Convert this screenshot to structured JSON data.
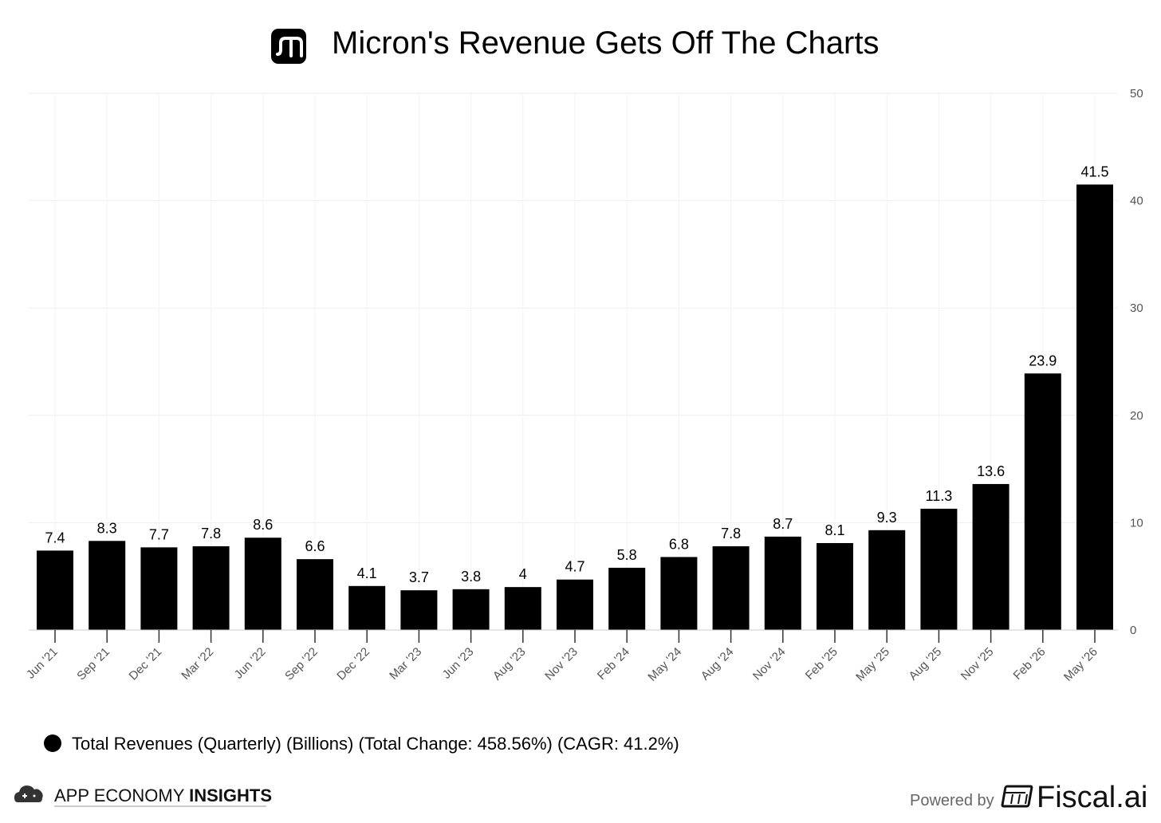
{
  "chart_data": {
    "type": "bar",
    "title": "Micron's Revenue Gets Off The Charts",
    "categories": [
      "Jun '21",
      "Sep '21",
      "Dec '21",
      "Mar '22",
      "Jun '22",
      "Sep '22",
      "Dec '22",
      "Mar '23",
      "Jun '23",
      "Aug '23",
      "Nov '23",
      "Feb '24",
      "May '24",
      "Aug '24",
      "Nov '24",
      "Feb '25",
      "May '25",
      "Aug '25",
      "Nov '25",
      "Feb '26",
      "May '26"
    ],
    "series": [
      {
        "name": "Total Revenues (Quarterly) (Billions) (Total Change: 458.56%) (CAGR: 41.2%)",
        "values": [
          7.4,
          8.3,
          7.7,
          7.8,
          8.6,
          6.6,
          4.1,
          3.7,
          3.8,
          4,
          4.7,
          5.8,
          6.8,
          7.8,
          8.7,
          8.1,
          9.3,
          11.3,
          13.6,
          23.9,
          41.5
        ],
        "labels": [
          "7.4",
          "8.3",
          "7.7",
          "7.8",
          "8.6",
          "6.6",
          "4.1",
          "3.7",
          "3.8",
          "4",
          "4.7",
          "5.8",
          "6.8",
          "7.8",
          "8.7",
          "8.1",
          "9.3",
          "11.3",
          "13.6",
          "23.9",
          "41.5"
        ]
      }
    ],
    "xlabel": "",
    "ylabel": "",
    "ylim": [
      0,
      50
    ],
    "yticks": [
      "0",
      "10",
      "20",
      "30",
      "40",
      "50"
    ],
    "y_axis_side": "right",
    "grid": true,
    "legend_position": "bottom-left",
    "bar_color": "#000000"
  },
  "header": {
    "logo_icon": "micron-logo-icon"
  },
  "footer": {
    "brand_left_regular": "APP ECONOMY ",
    "brand_left_bold": "INSIGHTS",
    "brand_left_icon": "cloud-gamepad-icon",
    "powered_by": "Powered by",
    "brand_right": "Fiscal.ai",
    "brand_right_icon": "calculator-icon"
  },
  "colors": {
    "bar": "#000000",
    "grid": "#eeeeee",
    "tick_text": "#555555"
  }
}
